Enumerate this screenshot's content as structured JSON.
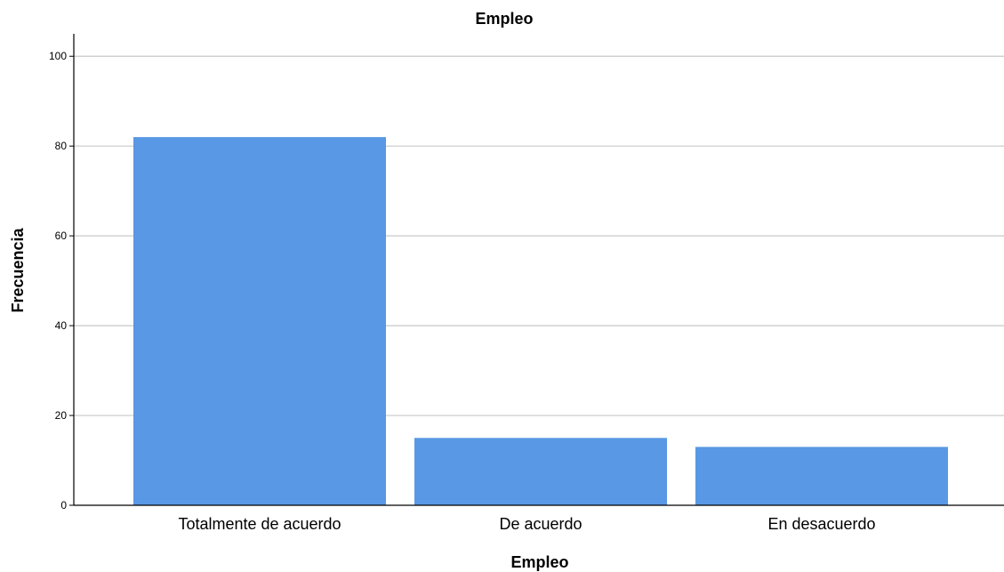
{
  "chart_data": {
    "type": "bar",
    "title": "Empleo",
    "xlabel": "Empleo",
    "ylabel": "Frecuencia",
    "categories": [
      "Totalmente de acuerdo",
      "De acuerdo",
      "En desacuerdo"
    ],
    "values": [
      82,
      15,
      13
    ],
    "ylim": [
      0,
      105
    ],
    "yticks": [
      0,
      20,
      40,
      60,
      80,
      100
    ],
    "grid": true,
    "bar_color": "#5898e4",
    "grid_color": "#c8c8c8",
    "axis_color": "#000000"
  }
}
